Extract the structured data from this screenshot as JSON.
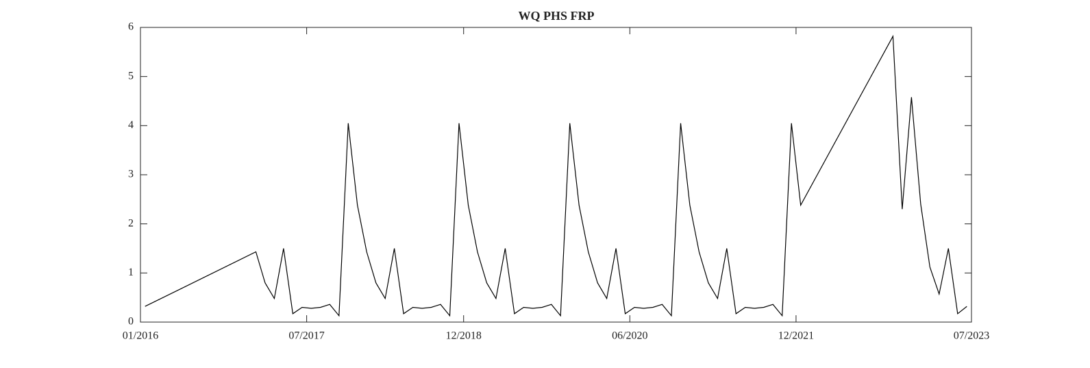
{
  "chart_data": {
    "type": "line",
    "title": "WQ PHS FRP",
    "x": [
      "2016-01",
      "2017-01",
      "2017-02",
      "2017-03",
      "2017-04",
      "2017-05",
      "2017-06",
      "2017-07",
      "2017-08",
      "2017-09",
      "2017-10",
      "2017-11",
      "2017-12",
      "2018-01",
      "2018-02",
      "2018-03",
      "2018-04",
      "2018-05",
      "2018-06",
      "2018-07",
      "2018-08",
      "2018-09",
      "2018-10",
      "2018-11",
      "2018-12",
      "2019-01",
      "2019-02",
      "2019-03",
      "2019-04",
      "2019-05",
      "2019-06",
      "2019-07",
      "2019-08",
      "2019-09",
      "2019-10",
      "2019-11",
      "2019-12",
      "2020-01",
      "2020-02",
      "2020-03",
      "2020-04",
      "2020-05",
      "2020-06",
      "2020-07",
      "2020-08",
      "2020-09",
      "2020-10",
      "2020-11",
      "2020-12",
      "2021-01",
      "2021-02",
      "2021-03",
      "2021-04",
      "2021-05",
      "2021-06",
      "2021-07",
      "2021-08",
      "2021-09",
      "2021-10",
      "2021-11",
      "2021-12",
      "2022-10",
      "2022-11",
      "2022-12",
      "2023-01",
      "2023-02",
      "2023-03",
      "2023-04",
      "2023-05",
      "2023-06"
    ],
    "series": [
      {
        "color": "#000000",
        "values": [
          0.32,
          1.43,
          0.8,
          0.48,
          1.5,
          0.17,
          0.3,
          0.28,
          0.3,
          0.36,
          0.13,
          4.05,
          2.38,
          1.43,
          0.8,
          0.48,
          1.5,
          0.17,
          0.3,
          0.28,
          0.3,
          0.36,
          0.13,
          4.05,
          2.38,
          1.43,
          0.8,
          0.48,
          1.5,
          0.17,
          0.3,
          0.28,
          0.3,
          0.36,
          0.13,
          4.05,
          2.38,
          1.43,
          0.8,
          0.48,
          1.5,
          0.17,
          0.3,
          0.28,
          0.3,
          0.36,
          0.13,
          4.05,
          2.38,
          1.43,
          0.8,
          0.48,
          1.5,
          0.17,
          0.3,
          0.28,
          0.3,
          0.36,
          0.13,
          4.05,
          2.38,
          5.82,
          2.3,
          4.58,
          2.4,
          1.12,
          0.57,
          1.5,
          0.17,
          0.32
        ]
      }
    ],
    "xlim": [
      "2016-01",
      "2023-07"
    ],
    "xticks": [
      {
        "value": "2016-01",
        "label": "01/2016"
      },
      {
        "value": "2017-07",
        "label": "07/2017"
      },
      {
        "value": "2018-12",
        "label": "12/2018"
      },
      {
        "value": "2020-06",
        "label": "06/2020"
      },
      {
        "value": "2021-12",
        "label": "12/2021"
      },
      {
        "value": "2023-07",
        "label": "07/2023"
      }
    ],
    "ylim": [
      0,
      6
    ],
    "yticks": [
      0,
      1,
      2,
      3,
      4,
      5,
      6
    ]
  }
}
